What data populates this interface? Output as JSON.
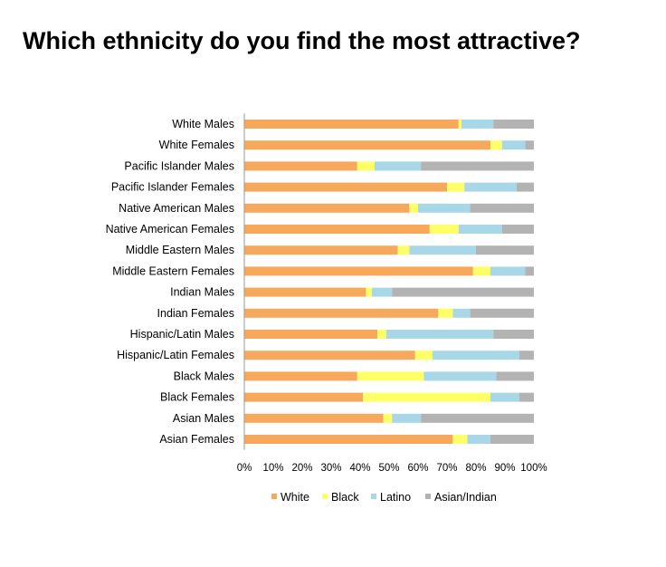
{
  "chart_data": {
    "type": "bar",
    "orientation": "horizontal",
    "stacked": "percent",
    "title": "Which ethnicity do you find the most attractive?",
    "xlabel": "",
    "ylabel": "",
    "xlim": [
      0,
      100
    ],
    "x_ticks": [
      "0%",
      "10%",
      "20%",
      "30%",
      "40%",
      "50%",
      "60%",
      "70%",
      "80%",
      "90%",
      "100%"
    ],
    "grid": false,
    "legend_position": "bottom",
    "categories": [
      "White Males",
      "White Females",
      "Pacific Islander Males",
      "Pacific Islander Females",
      "Native American Males",
      "Native American Females",
      "Middle Eastern Males",
      "Middle Eastern Females",
      "Indian Males",
      "Indian Females",
      "Hispanic/Latin Males",
      "Hispanic/Latin Females",
      "Black Males",
      "Black Females",
      "Asian Males",
      "Asian Females"
    ],
    "series": [
      {
        "name": "White",
        "color": "#F7A85A",
        "values": [
          74,
          85,
          39,
          70,
          57,
          64,
          53,
          79,
          42,
          67,
          46,
          59,
          39,
          41,
          48,
          72
        ]
      },
      {
        "name": "Black",
        "color": "#FFFF66",
        "values": [
          1,
          4,
          6,
          6,
          3,
          10,
          4,
          6,
          2,
          5,
          3,
          6,
          23,
          44,
          3,
          5
        ]
      },
      {
        "name": "Latino",
        "color": "#A8D8E8",
        "values": [
          11,
          8,
          16,
          18,
          18,
          15,
          23,
          12,
          7,
          6,
          37,
          30,
          25,
          10,
          10,
          8
        ]
      },
      {
        "name": "Asian/Indian",
        "color": "#B3B3B3",
        "values": [
          14,
          3,
          39,
          6,
          22,
          11,
          20,
          3,
          49,
          22,
          14,
          5,
          13,
          5,
          39,
          15
        ]
      }
    ]
  }
}
